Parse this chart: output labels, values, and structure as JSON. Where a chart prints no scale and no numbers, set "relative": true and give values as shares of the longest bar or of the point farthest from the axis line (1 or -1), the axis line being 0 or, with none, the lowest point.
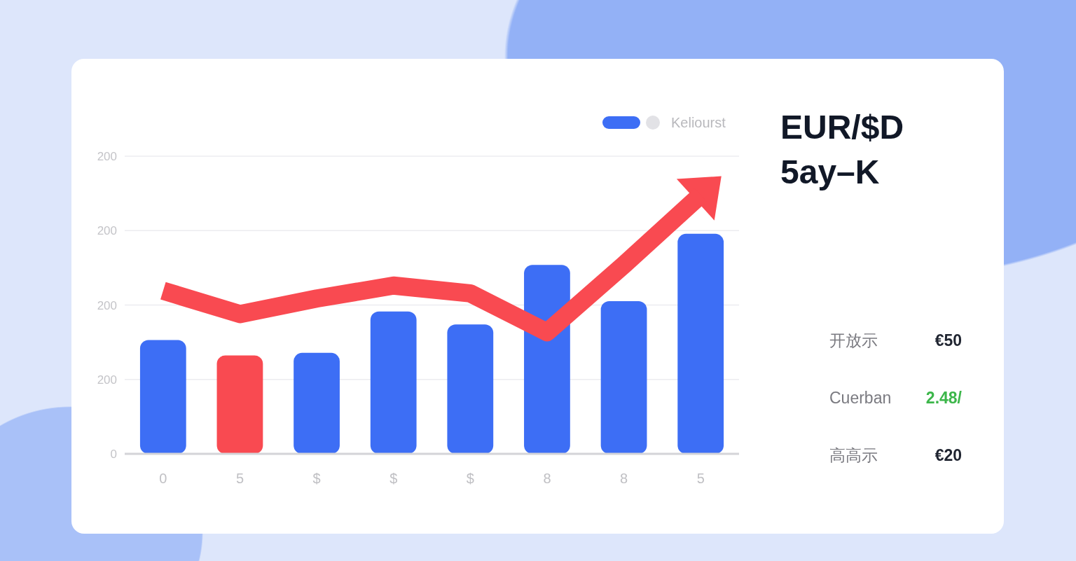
{
  "chart_data": [
    {
      "type": "bar",
      "categories": [
        "0",
        "5",
        "$",
        "$",
        "$",
        "8",
        "8",
        "5"
      ],
      "relative": true,
      "grid": "y",
      "legend": "top right",
      "series": [
        {
          "name": "Keliourst",
          "colors": [
            "#3d6ef5",
            "#f94a51",
            "#3d6ef5",
            "#3d6ef5",
            "#3d6ef5",
            "#3d6ef5",
            "#3d6ef5",
            "#3d6ef5"
          ],
          "values": [
            0.44,
            0.38,
            0.39,
            0.55,
            0.5,
            0.73,
            0.59,
            0.85
          ]
        },
        {
          "type": "line",
          "color": "#f94a51",
          "values": [
            0.63,
            0.54,
            0.6,
            0.65,
            0.62,
            0.47,
            0.73,
            1
          ]
        }
      ],
      "annotations": [
        "0",
        "200",
        "200",
        "200",
        "200"
      ]
    },
    {
      "type": "other",
      "title": "EUR/$D 5ay–K",
      "annotations": [
        "开放示",
        "€50",
        "Cuerban",
        "2.48/",
        "高高示",
        "€20"
      ]
    }
  ]
}
